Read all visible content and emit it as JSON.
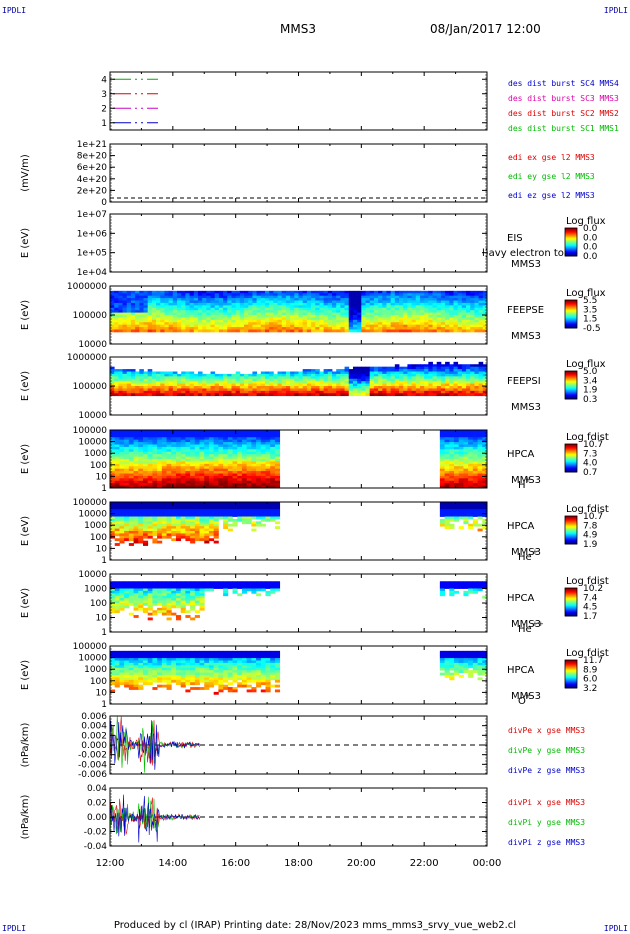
{
  "corner_label": "IPDLI",
  "header": {
    "spacecraft": "MMS3",
    "datetime": "08/Jan/2017 12:00"
  },
  "footer": {
    "text": "Produced by cl (IRAP)   Printing date: 28/Nov/2023   mms_mms3_srvy_vue_web2.cl"
  },
  "colors": {
    "burst1": "#00aa00",
    "burst2": "#dd0000",
    "burst3": "#cc00cc",
    "burst4": "#0000cc",
    "x": "#dd0000",
    "y": "#00bb00",
    "z": "#0000cc"
  },
  "chart_data": [
    {
      "type": "line",
      "name_panel": "burst",
      "ylim": [
        0.5,
        4.5
      ],
      "yticks": [
        "1",
        "2",
        "3",
        "4"
      ],
      "series": [
        {
          "name": "des dist burst SC1 MMS1",
          "y": 4,
          "x_range": [
            "12:00",
            "13:45"
          ]
        },
        {
          "name": "des dist burst SC2 MMS2",
          "y": 3,
          "x_range": [
            "12:00",
            "13:45"
          ]
        },
        {
          "name": "des dist burst SC3 MMS3",
          "y": 2,
          "x_range": [
            "12:00",
            "13:45"
          ]
        },
        {
          "name": "des dist burst SC4 MMS4",
          "y": 1,
          "x_range": [
            "12:00",
            "13:45"
          ]
        }
      ],
      "legend_colors": [
        "#0000cc",
        "#dd00aa",
        "#dd0000",
        "#00bb00"
      ]
    },
    {
      "type": "line",
      "ylabel": "(mV/m)",
      "yticks": [
        "0",
        "2e+20",
        "4e+20",
        "6e+20",
        "8e+20",
        "1e+21"
      ],
      "series": [
        {
          "name": "edi ex gse l2 MMS3"
        },
        {
          "name": "edi ey gse l2 MMS3"
        },
        {
          "name": "edi ez gse l2 MMS3"
        }
      ],
      "zero_line": true
    },
    {
      "type": "heatmap",
      "ylabel": "E (eV)",
      "yticks": [
        "1e+04",
        "1e+05",
        "1e+06",
        "1e+07"
      ],
      "instrument": "EIS",
      "sc": "MMS3",
      "overlay_text": "l)avy electron to",
      "cbar_title": "Log flux",
      "cbar_ticks": [
        "0.0",
        "0.0",
        "0.0",
        "0.0"
      ]
    },
    {
      "type": "heatmap",
      "ylabel": "E (eV)",
      "yticks": [
        "1000000",
        "100000",
        "10000"
      ],
      "instrument": "FEEPSE",
      "sc": "MMS3",
      "cbar_title": "Log flux",
      "cbar_ticks": [
        "5.5",
        "3.5",
        "1.5",
        "-0.5"
      ]
    },
    {
      "type": "heatmap",
      "ylabel": "E (eV)",
      "yticks": [
        "1000000",
        "100000",
        "10000"
      ],
      "instrument": "FEEPSI",
      "sc": "MMS3",
      "cbar_title": "Log flux",
      "cbar_ticks": [
        "5.0",
        "3.4",
        "1.9",
        "0.3"
      ]
    },
    {
      "type": "heatmap",
      "ylabel": "E (eV)",
      "yticks": [
        "100000",
        "10000",
        "1000",
        "100",
        "10",
        "1"
      ],
      "instrument": "HPCA",
      "sc": "MMS3",
      "species": "H",
      "species_sup": "+",
      "cbar_title": "Log fdist",
      "cbar_ticks": [
        "10.7",
        "7.3",
        "4.0",
        "0.7"
      ]
    },
    {
      "type": "heatmap",
      "ylabel": "E (eV)",
      "yticks": [
        "100000",
        "10000",
        "1000",
        "100",
        "10",
        "1"
      ],
      "instrument": "HPCA",
      "sc": "MMS3",
      "species": "He",
      "species_sup": "+",
      "cbar_title": "Log fdist",
      "cbar_ticks": [
        "10.7",
        "7.8",
        "4.9",
        "1.9"
      ]
    },
    {
      "type": "heatmap",
      "ylabel": "E (eV)",
      "yticks": [
        "10000",
        "1000",
        "100",
        "10",
        "1"
      ],
      "instrument": "HPCA",
      "sc": "MMS3",
      "species": "He",
      "species_sup": "++",
      "cbar_title": "Log fdist",
      "cbar_ticks": [
        "10.2",
        "7.4",
        "4.5",
        "1.7"
      ]
    },
    {
      "type": "heatmap",
      "ylabel": "E (eV)",
      "yticks": [
        "100000",
        "10000",
        "1000",
        "100",
        "10",
        "1"
      ],
      "instrument": "HPCA",
      "sc": "MMS3",
      "species": "O",
      "species_sup": "+",
      "cbar_title": "Log fdist",
      "cbar_ticks": [
        "11.7",
        "8.9",
        "6.0",
        "3.2"
      ]
    },
    {
      "type": "line",
      "ylabel": "(nPa/km)",
      "yticks": [
        "0.006",
        "0.004",
        "0.002",
        "0.000",
        "-0.002",
        "-0.004",
        "-0.006"
      ],
      "series": [
        {
          "name": "divPe x gse MMS3"
        },
        {
          "name": "divPe y gse MMS3"
        },
        {
          "name": "divPe z gse MMS3"
        }
      ],
      "zero_line": true
    },
    {
      "type": "line",
      "ylabel": "(nPa/km)",
      "yticks": [
        "0.04",
        "0.02",
        "0.00",
        "-0.02",
        "-0.04"
      ],
      "series": [
        {
          "name": "divPi x gse MMS3"
        },
        {
          "name": "divPi y gse MMS3"
        },
        {
          "name": "divPi z gse MMS3"
        }
      ],
      "zero_line": true
    }
  ],
  "time_axis": {
    "ticks": [
      "12:00",
      "14:00",
      "16:00",
      "18:00",
      "20:00",
      "22:00",
      "00:00"
    ]
  }
}
